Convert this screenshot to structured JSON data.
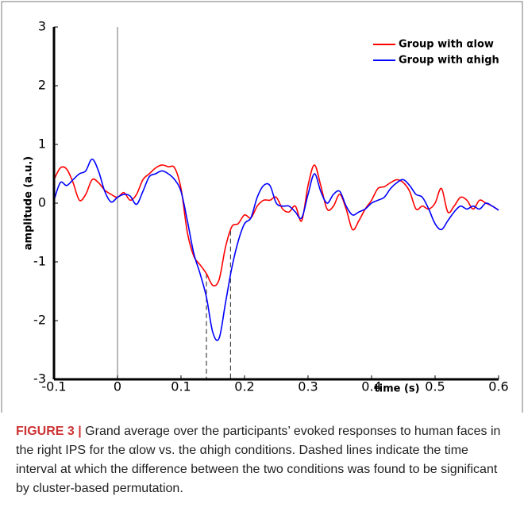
{
  "chart_data": {
    "type": "line",
    "xlabel": "time (s)",
    "ylabel": "amplitude (a.u.)",
    "x": [
      -0.1,
      -0.09,
      -0.08,
      -0.07,
      -0.06,
      -0.05,
      -0.04,
      -0.03,
      -0.02,
      -0.01,
      0,
      0.01,
      0.02,
      0.03,
      0.04,
      0.05,
      0.06,
      0.07,
      0.08,
      0.09,
      0.1,
      0.11,
      0.12,
      0.13,
      0.14,
      0.15,
      0.16,
      0.17,
      0.18,
      0.19,
      0.2,
      0.21,
      0.22,
      0.23,
      0.24,
      0.25,
      0.26,
      0.27,
      0.28,
      0.29,
      0.3,
      0.31,
      0.32,
      0.33,
      0.34,
      0.35,
      0.36,
      0.37,
      0.38,
      0.39,
      0.4,
      0.41,
      0.42,
      0.43,
      0.44,
      0.45,
      0.46,
      0.47,
      0.48,
      0.49,
      0.5,
      0.51,
      0.52,
      0.53,
      0.54,
      0.55,
      0.56,
      0.57,
      0.58,
      0.59,
      0.6
    ],
    "series": [
      {
        "name": "Group with αlow",
        "color": "#ff0000",
        "values": [
          0.4,
          0.6,
          0.58,
          0.35,
          0.05,
          0.15,
          0.4,
          0.35,
          0.22,
          0.15,
          0.1,
          0.18,
          0.05,
          0.15,
          0.4,
          0.5,
          0.6,
          0.65,
          0.62,
          0.6,
          0.25,
          -0.5,
          -0.9,
          -1.05,
          -1.2,
          -1.4,
          -1.3,
          -0.75,
          -0.4,
          -0.35,
          -0.2,
          -0.25,
          -0.05,
          0.05,
          0.05,
          0.1,
          -0.1,
          -0.15,
          -0.05,
          -0.3,
          0.3,
          0.65,
          0.3,
          -0.1,
          -0.05,
          0.15,
          -0.1,
          -0.45,
          -0.3,
          -0.1,
          0.05,
          0.25,
          0.28,
          0.35,
          0.4,
          0.35,
          0.2,
          -0.1,
          -0.05,
          -0.1,
          0,
          0.25,
          -0.15,
          -0.05,
          0.1,
          0.05,
          -0.1,
          0.05,
          0,
          -0.05,
          -0.12
        ]
      },
      {
        "name": "Group with αhigh",
        "color": "#0000ff",
        "values": [
          0.05,
          0.35,
          0.3,
          0.4,
          0.5,
          0.55,
          0.75,
          0.55,
          0.2,
          0.02,
          0.1,
          0.15,
          0.12,
          -0.02,
          0.2,
          0.45,
          0.5,
          0.55,
          0.5,
          0.4,
          0.2,
          -0.3,
          -0.85,
          -1.2,
          -1.6,
          -2.2,
          -2.3,
          -1.7,
          -1.1,
          -0.65,
          -0.35,
          -0.25,
          0.1,
          0.3,
          0.3,
          0,
          -0.05,
          -0.05,
          -0.15,
          -0.25,
          0.15,
          0.5,
          0.2,
          0,
          0.15,
          0.2,
          -0.05,
          -0.2,
          -0.15,
          -0.1,
          0,
          0.05,
          0.1,
          0.25,
          0.35,
          0.4,
          0.3,
          0.15,
          0.1,
          -0.1,
          -0.35,
          -0.45,
          -0.3,
          -0.15,
          -0.05,
          -0.1,
          -0.05,
          -0.1,
          0,
          -0.05,
          -0.12
        ]
      }
    ],
    "significant_interval": [
      0.14,
      0.178
    ],
    "xlim": [
      -0.1,
      0.6
    ],
    "xticks": [
      -0.1,
      0,
      0.1,
      0.2,
      0.3,
      0.4,
      0.5,
      0.6
    ],
    "ylim": [
      -3,
      3
    ],
    "yticks": [
      -3,
      -2,
      -1,
      0,
      1,
      2,
      3
    ],
    "legend": "upper right"
  },
  "caption": {
    "label": "FIGURE 3 |",
    "text": "Grand average over the participants’ evoked responses to human faces in the right IPS for the αlow vs. the αhigh conditions. Dashed lines indicate the time interval at which the difference between the two conditions was found to be significant by cluster-based permutation."
  }
}
